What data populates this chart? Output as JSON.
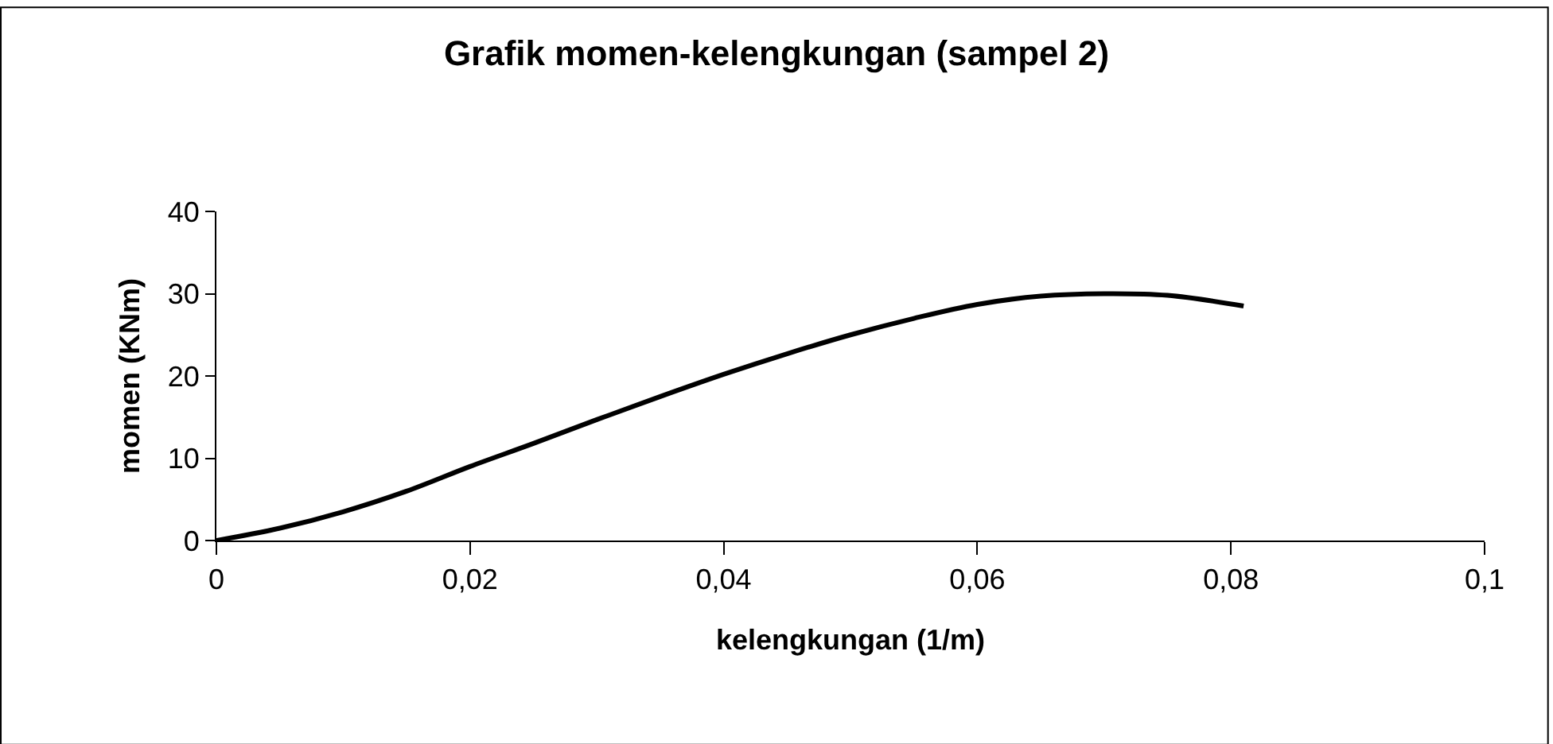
{
  "chart_data": {
    "type": "line",
    "title": "Grafik momen-kelengkungan (sampel 2)",
    "xlabel": "kelengkungan (1/m)",
    "ylabel": "momen (KNm)",
    "x": [
      0,
      0.005,
      0.01,
      0.015,
      0.02,
      0.025,
      0.03,
      0.035,
      0.04,
      0.045,
      0.05,
      0.055,
      0.06,
      0.065,
      0.07,
      0.075,
      0.081
    ],
    "series": [
      {
        "color": "#000000",
        "values": [
          0,
          1.5,
          3.5,
          6,
          9,
          11.8,
          14.7,
          17.5,
          20.2,
          22.7,
          25,
          27,
          28.7,
          29.7,
          30,
          29.8,
          28.5
        ]
      }
    ],
    "xlim": [
      0,
      0.1
    ],
    "xticks": [
      {
        "value": 0,
        "label": "0"
      },
      {
        "value": 0.02,
        "label": "0,02"
      },
      {
        "value": 0.04,
        "label": "0,04"
      },
      {
        "value": 0.06,
        "label": "0,06"
      },
      {
        "value": 0.08,
        "label": "0,08"
      },
      {
        "value": 0.1,
        "label": "0,1"
      }
    ],
    "ylim": [
      0,
      40
    ],
    "yticks": [
      0,
      10,
      20,
      30,
      40
    ],
    "grid": false,
    "marker": "none",
    "line_style": "solid"
  }
}
